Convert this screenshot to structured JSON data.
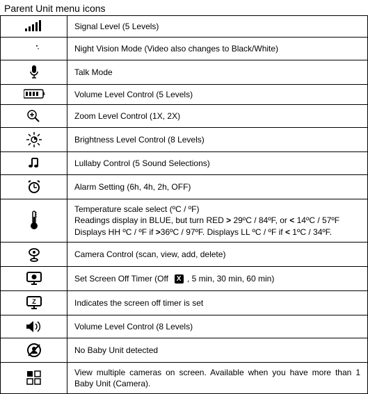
{
  "title": "Parent Unit menu icons",
  "rows": [
    {
      "icon": "signal",
      "desc_html": "Signal Level (5 Levels)"
    },
    {
      "icon": "night-vision",
      "desc_html": "Night Vision Mode (Video also changes to Black/White)"
    },
    {
      "icon": "talk",
      "desc_html": "Talk Mode"
    },
    {
      "icon": "volume5",
      "desc_html": "Volume Level Control (5 Levels)"
    },
    {
      "icon": "zoom",
      "desc_html": "Zoom Level Control (1X, 2X)"
    },
    {
      "icon": "brightness",
      "desc_html": "Brightness Level Control (8 Levels)"
    },
    {
      "icon": "lullaby",
      "desc_html": "Lullaby Control (5 Sound Selections)"
    },
    {
      "icon": "alarm",
      "desc_html": "Alarm Setting (6h, 4h, 2h, OFF)"
    },
    {
      "icon": "thermometer",
      "desc_html": "Temperature scale select (ºC / ºF)<br>Readings display in BLUE, but turn RED <span class=\"bold\">&gt;</span> 29ºC / 84ºF, or <span class=\"bold\">&lt;</span> 14ºC / 57ºF Displays HH ºC / ºF if <span class=\"bold\">&gt;</span>36ºC / 97ºF. Displays LL ºC / ºF if <span class=\"bold\">&lt;</span> 1ºC / 34ºF."
    },
    {
      "icon": "camera",
      "desc_html": "Camera Control (scan, view, add, delete)"
    },
    {
      "icon": "screen-timer",
      "desc_html": "Set Screen Off Timer (Off&nbsp; <span class=\"x-box\">X</span> , 5 min, 30 min, 60 min)"
    },
    {
      "icon": "screen-timer-set",
      "desc_html": "Indicates the screen off timer is set"
    },
    {
      "icon": "volume8",
      "desc_html": "Volume Level Control (8 Levels)"
    },
    {
      "icon": "no-baby",
      "desc_html": "No Baby Unit detected"
    },
    {
      "icon": "multi-camera",
      "desc_html": "View multiple cameras on screen. Available when you have more than 1 Baby Unit (Camera).",
      "justify": true
    }
  ],
  "icons": {
    "signal": "<svg class=\"icon-svg\" width=\"26\" height=\"18\"><rect x=\"0\" y=\"12\" width=\"3\" height=\"4\" fill=\"#000\"/><rect x=\"5\" y=\"9\" width=\"3\" height=\"7\" fill=\"#000\"/><rect x=\"10\" y=\"6\" width=\"3\" height=\"10\" fill=\"#000\"/><rect x=\"15\" y=\"3\" width=\"3\" height=\"13\" fill=\"#000\"/><rect x=\"20\" y=\"0\" width=\"3\" height=\"16\" fill=\"#000\"/></svg>",
    "night-vision": "<svg class=\"icon-svg\" width=\"20\" height=\"20\"><path d=\"M10 1 A9 9 0 1 0 10 19 A7 7 0 0 1 10 1 Z\" fill=\"#000\"/><circle cx=\"14\" cy=\"6\" r=\"1\" fill=\"#000\"/><circle cx=\"16\" cy=\"10\" r=\"0.8\" fill=\"#000\"/></svg>",
    "talk": "<svg class=\"icon-svg\" width=\"16\" height=\"22\"><rect x=\"5\" y=\"1\" width=\"6\" height=\"11\" rx=\"3\" fill=\"#000\"/><path d=\"M3 10 a5 5 0 0 0 10 0\" fill=\"none\" stroke=\"#000\" stroke-width=\"1.5\"/><line x1=\"8\" y1=\"15\" x2=\"8\" y2=\"19\" stroke=\"#000\" stroke-width=\"1.5\"/><line x1=\"5\" y1=\"19\" x2=\"11\" y2=\"19\" stroke=\"#000\" stroke-width=\"1.5\"/></svg>",
    "volume5": "<svg class=\"icon-svg\" width=\"30\" height=\"16\"><rect x=\"0\" y=\"1\" width=\"28\" height=\"12\" rx=\"2\" fill=\"none\" stroke=\"#000\" stroke-width=\"1.5\"/><rect x=\"3\" y=\"4\" width=\"3\" height=\"6\" fill=\"#000\"/><rect x=\"8\" y=\"4\" width=\"3\" height=\"6\" fill=\"#000\"/><rect x=\"13\" y=\"4\" width=\"3\" height=\"6\" fill=\"#000\"/><rect x=\"18\" y=\"4\" width=\"3\" height=\"6\" fill=\"#000\"/><rect x=\"28\" y=\"5\" width=\"2\" height=\"4\" fill=\"#000\"/></svg>",
    "zoom": "<svg class=\"icon-svg\" width=\"22\" height=\"20\"><circle cx=\"8\" cy=\"8\" r=\"6\" fill=\"none\" stroke=\"#000\" stroke-width=\"1.5\"/><line x1=\"5\" y1=\"8\" x2=\"11\" y2=\"8\" stroke=\"#000\" stroke-width=\"1.5\"/><line x1=\"8\" y1=\"5\" x2=\"8\" y2=\"11\" stroke=\"#000\" stroke-width=\"1.5\"/><line x1=\"12\" y1=\"12\" x2=\"18\" y2=\"18\" stroke=\"#000\" stroke-width=\"2\"/></svg>",
    "brightness": "<svg class=\"icon-svg\" width=\"22\" height=\"22\"><circle cx=\"11\" cy=\"11\" r=\"4\" fill=\"none\" stroke=\"#000\" stroke-width=\"1.5\"/><path d=\"M11 11 L11 7 A4 4 0 0 1 15 11 Z\" fill=\"#000\"/><g stroke=\"#000\" stroke-width=\"1.5\"><line x1=\"11\" y1=\"0\" x2=\"11\" y2=\"4\"/><line x1=\"11\" y1=\"18\" x2=\"11\" y2=\"22\"/><line x1=\"0\" y1=\"11\" x2=\"4\" y2=\"11\"/><line x1=\"18\" y1=\"11\" x2=\"22\" y2=\"11\"/><line x1=\"3\" y1=\"3\" x2=\"6\" y2=\"6\"/><line x1=\"16\" y1=\"16\" x2=\"19\" y2=\"19\"/><line x1=\"3\" y1=\"19\" x2=\"6\" y2=\"16\"/><line x1=\"16\" y1=\"6\" x2=\"19\" y2=\"3\"/></g></svg>",
    "lullaby": "<svg class=\"icon-svg\" width=\"20\" height=\"20\"><path d=\"M7 3 L7 14\" stroke=\"#000\" stroke-width=\"2\" fill=\"none\"/><path d=\"M15 3 L15 14\" stroke=\"#000\" stroke-width=\"2\" fill=\"none\"/><path d=\"M7 3 L15 3\" stroke=\"#000\" stroke-width=\"2\"/><ellipse cx=\"5\" cy=\"14\" rx=\"3\" ry=\"2\" fill=\"#000\"/><ellipse cx=\"13\" cy=\"14\" rx=\"3\" ry=\"2\" fill=\"#000\"/></svg>",
    "alarm": "<svg class=\"icon-svg\" width=\"22\" height=\"22\"><circle cx=\"11\" cy=\"12\" r=\"7\" fill=\"none\" stroke=\"#000\" stroke-width=\"2\"/><line x1=\"11\" y1=\"12\" x2=\"11\" y2=\"7\" stroke=\"#000\" stroke-width=\"1.5\"/><line x1=\"11\" y1=\"12\" x2=\"15\" y2=\"12\" stroke=\"#000\" stroke-width=\"1.5\"/><line x1=\"3\" y1=\"4\" x2=\"6\" y2=\"2\" stroke=\"#000\" stroke-width=\"2\"/><line x1=\"19\" y1=\"4\" x2=\"16\" y2=\"2\" stroke=\"#000\" stroke-width=\"2\"/></svg>",
    "thermometer": "<svg class=\"icon-svg\" width=\"14\" height=\"28\"><rect x=\"5\" y=\"1\" width=\"4\" height=\"17\" rx=\"2\" fill=\"none\" stroke=\"#000\" stroke-width=\"1.5\"/><circle cx=\"7\" cy=\"22\" r=\"5\" fill=\"#000\"/><line x1=\"7\" y1=\"9\" x2=\"7\" y2=\"18\" stroke=\"#000\" stroke-width=\"2\"/><line x1=\"9\" y1=\"3\" x2=\"11\" y2=\"3\" stroke=\"#000\"/><line x1=\"9\" y1=\"6\" x2=\"11\" y2=\"6\" stroke=\"#000\"/><line x1=\"9\" y1=\"9\" x2=\"11\" y2=\"9\" stroke=\"#000\"/></svg>",
    "camera": "<svg class=\"icon-svg\" width=\"22\" height=\"22\"><ellipse cx=\"11\" cy=\"8\" rx=\"7\" ry=\"5\" fill=\"none\" stroke=\"#000\" stroke-width=\"1.8\"/><circle cx=\"11\" cy=\"8\" r=\"2\" fill=\"#000\"/><line x1=\"11\" y1=\"13\" x2=\"11\" y2=\"17\" stroke=\"#000\" stroke-width=\"1.8\"/><ellipse cx=\"11\" cy=\"19\" rx=\"5\" ry=\"2\" fill=\"none\" stroke=\"#000\" stroke-width=\"1.8\"/></svg>",
    "screen-timer": "<svg class=\"icon-svg\" width=\"24\" height=\"22\"><rect x=\"2\" y=\"2\" width=\"20\" height=\"13\" rx=\"2\" fill=\"none\" stroke=\"#000\" stroke-width=\"2\"/><line x1=\"12\" y1=\"15\" x2=\"12\" y2=\"18\" stroke=\"#000\" stroke-width=\"2\"/><line x1=\"8\" y1=\"19\" x2=\"16\" y2=\"19\" stroke=\"#000\" stroke-width=\"2\"/><circle cx=\"12\" cy=\"8.5\" r=\"3.5\" fill=\"#000\"/></svg>",
    "screen-timer-set": "<svg class=\"icon-svg\" width=\"24\" height=\"22\"><rect x=\"2\" y=\"2\" width=\"20\" height=\"13\" rx=\"2\" fill=\"none\" stroke=\"#000\" stroke-width=\"2\"/><line x1=\"12\" y1=\"15\" x2=\"12\" y2=\"18\" stroke=\"#000\" stroke-width=\"2\"/><line x1=\"8\" y1=\"19\" x2=\"16\" y2=\"19\" stroke=\"#000\" stroke-width=\"2\"/><text x=\"12\" y=\"12\" font-size=\"9\" font-weight=\"bold\" text-anchor=\"middle\" fill=\"#000\">Z</text></svg>",
    "volume8": "<svg class=\"icon-svg\" width=\"24\" height=\"20\"><path d=\"M1 7 L5 7 L11 2 L11 18 L5 13 L1 13 Z\" fill=\"#000\"/><path d=\"M14 6 A5 5 0 0 1 14 14\" fill=\"none\" stroke=\"#000\" stroke-width=\"1.5\"/><path d=\"M17 3 A9 9 0 0 1 17 17\" fill=\"none\" stroke=\"#000\" stroke-width=\"1.5\"/></svg>",
    "no-baby": "<svg class=\"icon-svg\" width=\"22\" height=\"22\"><circle cx=\"11\" cy=\"11\" r=\"9\" fill=\"none\" stroke=\"#000\" stroke-width=\"2\"/><circle cx=\"11\" cy=\"9\" r=\"3\" fill=\"#000\"/><path d=\"M6 16 A5 4 0 0 1 16 16\" fill=\"#000\"/><line x1=\"3\" y1=\"19\" x2=\"19\" y2=\"3\" stroke=\"#000\" stroke-width=\"2\"/></svg>",
    "multi-camera": "<svg class=\"icon-svg\" width=\"22\" height=\"22\"><rect x=\"1\" y=\"1\" width=\"8\" height=\"8\" fill=\"#000\"/><rect x=\"12\" y=\"1\" width=\"8\" height=\"8\" fill=\"none\" stroke=\"#000\" stroke-width=\"1.5\"/><rect x=\"1\" y=\"12\" width=\"8\" height=\"8\" fill=\"none\" stroke=\"#000\" stroke-width=\"1.5\"/><rect x=\"12\" y=\"12\" width=\"8\" height=\"8\" fill=\"none\" stroke=\"#000\" stroke-width=\"1.5\"/></svg>"
  }
}
